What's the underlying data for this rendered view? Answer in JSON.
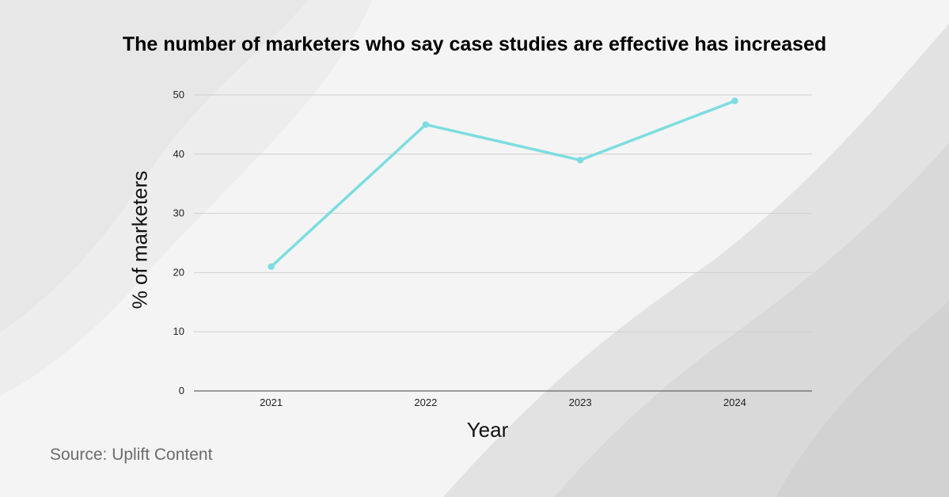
{
  "chart_data": {
    "type": "line",
    "title": "The number of marketers who say case studies are effective has increased",
    "xlabel": "Year",
    "ylabel": "% of marketers",
    "categories": [
      "2021",
      "2022",
      "2023",
      "2024"
    ],
    "values": [
      21,
      45,
      39,
      49
    ],
    "ylim": [
      0,
      50
    ],
    "yticks": [
      "0",
      "10",
      "20",
      "30",
      "40",
      "50"
    ],
    "grid": true,
    "line_color": "#7ddde0"
  },
  "source": "Source: Uplift Content"
}
